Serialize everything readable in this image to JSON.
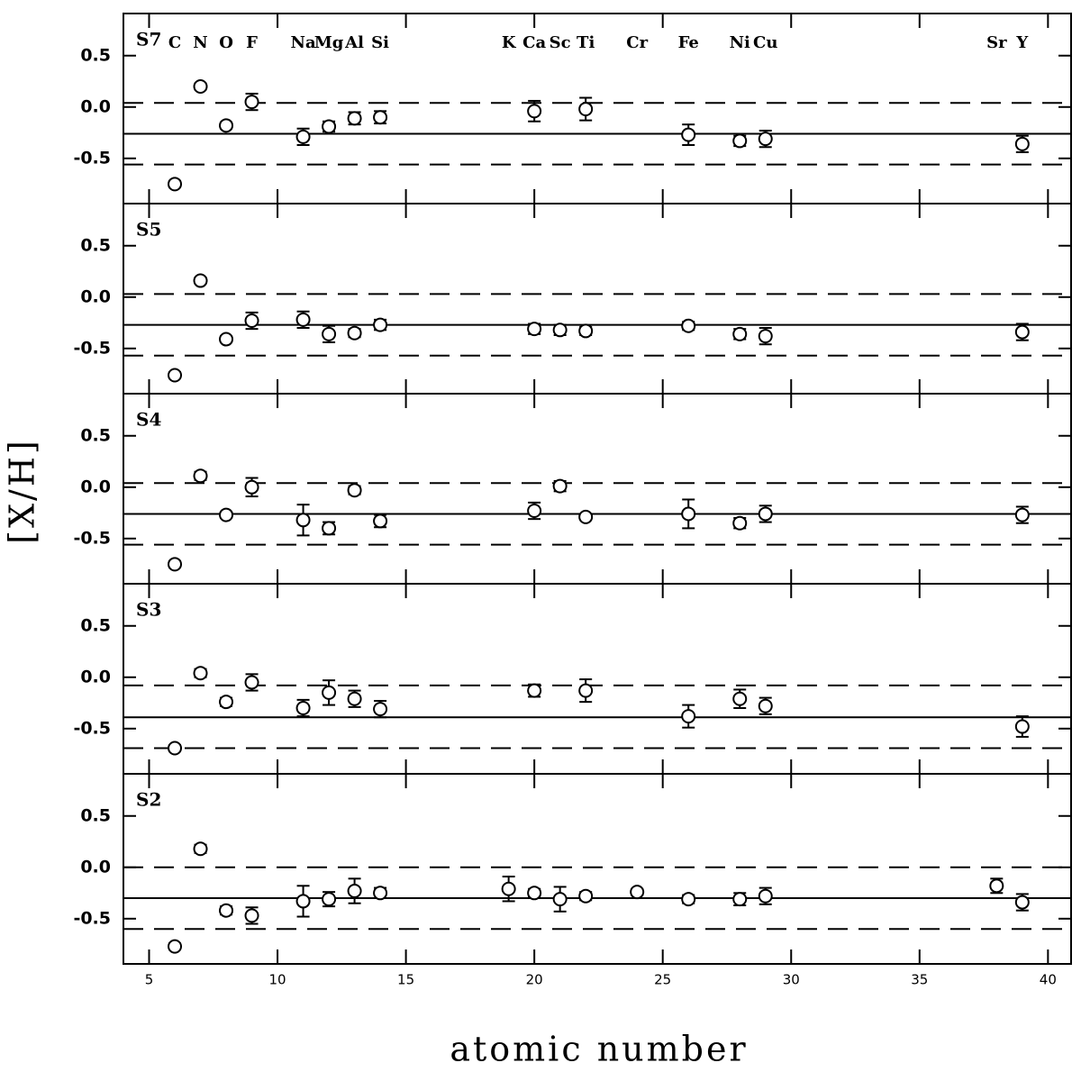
{
  "axis_labels": {
    "x": "atomic number",
    "y": "[X/H]"
  },
  "chart_data": [
    {
      "type": "scatter",
      "label": "S7",
      "annotations": [
        {
          "text": "C",
          "x": 6
        },
        {
          "text": "N",
          "x": 7
        },
        {
          "text": "O",
          "x": 8
        },
        {
          "text": "F",
          "x": 9
        },
        {
          "text": "Na",
          "x": 11
        },
        {
          "text": "Mg",
          "x": 12
        },
        {
          "text": "Al",
          "x": 13
        },
        {
          "text": "Si",
          "x": 14
        },
        {
          "text": "K",
          "x": 19
        },
        {
          "text": "Ca",
          "x": 20
        },
        {
          "text": "Sc",
          "x": 21
        },
        {
          "text": "Ti",
          "x": 22
        },
        {
          "text": "Cr",
          "x": 24
        },
        {
          "text": "Fe",
          "x": 26
        },
        {
          "text": "Ni",
          "x": 28
        },
        {
          "text": "Cu",
          "x": 29
        },
        {
          "text": "Sr",
          "x": 38
        },
        {
          "text": "Y",
          "x": 39
        }
      ],
      "x": [
        6,
        7,
        8,
        9,
        11,
        12,
        13,
        14,
        20,
        22,
        26,
        28,
        29,
        39
      ],
      "values": [
        -0.75,
        0.2,
        -0.18,
        0.05,
        -0.29,
        -0.19,
        -0.11,
        -0.1,
        -0.04,
        -0.02,
        -0.27,
        -0.33,
        -0.31,
        -0.36
      ],
      "errors": [
        0.03,
        0.03,
        0.03,
        0.08,
        0.08,
        0.05,
        0.06,
        0.06,
        0.1,
        0.11,
        0.1,
        0.05,
        0.08,
        0.08
      ],
      "mean": -0.26,
      "bounds": [
        0.04,
        -0.56
      ],
      "ylim": [
        -0.94,
        0.91
      ],
      "yticks": [
        {
          "value": 0.5,
          "label": "0.5"
        },
        {
          "value": 0,
          "label": "0.0"
        },
        {
          "value": -0.5,
          "label": "-0.5"
        }
      ]
    },
    {
      "type": "scatter",
      "label": "S5",
      "x": [
        6,
        7,
        8,
        9,
        11,
        12,
        13,
        14,
        20,
        21,
        22,
        26,
        28,
        29,
        39
      ],
      "values": [
        -0.76,
        0.16,
        -0.41,
        -0.23,
        -0.22,
        -0.36,
        -0.35,
        -0.27,
        -0.31,
        -0.32,
        -0.33,
        -0.28,
        -0.36,
        -0.38,
        -0.34
      ],
      "errors": [
        0.03,
        0.03,
        0.03,
        0.08,
        0.08,
        0.08,
        0.04,
        0.05,
        0.05,
        0.05,
        0.04,
        0.04,
        0.05,
        0.08,
        0.08
      ],
      "mean": -0.27,
      "bounds": [
        0.03,
        -0.57
      ],
      "ylim": [
        -0.94,
        0.91
      ],
      "yticks": [
        {
          "value": 0.5,
          "label": "0.5"
        },
        {
          "value": 0,
          "label": "0.0"
        },
        {
          "value": -0.5,
          "label": "-0.5"
        }
      ]
    },
    {
      "type": "scatter",
      "label": "S4",
      "x": [
        6,
        7,
        8,
        9,
        11,
        12,
        13,
        14,
        20,
        21,
        22,
        26,
        28,
        29,
        39
      ],
      "values": [
        -0.75,
        0.11,
        -0.27,
        0.0,
        -0.32,
        -0.4,
        -0.03,
        -0.33,
        -0.23,
        0.01,
        -0.29,
        -0.26,
        -0.35,
        -0.26,
        -0.27
      ],
      "errors": [
        0.03,
        0.04,
        0.03,
        0.09,
        0.15,
        0.06,
        0.04,
        0.06,
        0.08,
        0.05,
        0.02,
        0.14,
        0.05,
        0.08,
        0.08
      ],
      "mean": -0.26,
      "bounds": [
        0.04,
        -0.56
      ],
      "ylim": [
        -0.94,
        0.91
      ],
      "yticks": [
        {
          "value": 0.5,
          "label": "0.5"
        },
        {
          "value": 0,
          "label": "0.0"
        },
        {
          "value": -0.5,
          "label": "-0.5"
        }
      ]
    },
    {
      "type": "scatter",
      "label": "S3",
      "x": [
        6,
        7,
        8,
        9,
        11,
        12,
        13,
        14,
        20,
        22,
        26,
        28,
        29,
        39
      ],
      "values": [
        -0.69,
        0.04,
        -0.24,
        -0.05,
        -0.3,
        -0.15,
        -0.21,
        -0.31,
        -0.13,
        -0.13,
        -0.38,
        -0.21,
        -0.28,
        -0.48
      ],
      "errors": [
        0.03,
        0.04,
        0.04,
        0.08,
        0.08,
        0.12,
        0.08,
        0.08,
        0.06,
        0.11,
        0.11,
        0.09,
        0.08,
        0.1
      ],
      "mean": -0.39,
      "bounds": [
        -0.08,
        -0.69
      ],
      "ylim": [
        -0.94,
        0.91
      ],
      "yticks": [
        {
          "value": 0.5,
          "label": "0.5"
        },
        {
          "value": 0,
          "label": "0.0"
        },
        {
          "value": -0.5,
          "label": "-0.5"
        }
      ]
    },
    {
      "type": "scatter",
      "label": "S2",
      "x": [
        6,
        7,
        8,
        9,
        11,
        12,
        13,
        14,
        19,
        20,
        21,
        22,
        24,
        26,
        28,
        29,
        38,
        39
      ],
      "values": [
        -0.77,
        0.18,
        -0.42,
        -0.47,
        -0.33,
        -0.31,
        -0.23,
        -0.25,
        -0.21,
        -0.25,
        -0.31,
        -0.28,
        -0.24,
        -0.31,
        -0.31,
        -0.28,
        -0.18,
        -0.34
      ],
      "errors": [
        0.03,
        0.04,
        0.04,
        0.08,
        0.15,
        0.07,
        0.12,
        0.05,
        0.12,
        0.04,
        0.12,
        0.04,
        0.03,
        0.04,
        0.06,
        0.08,
        0.07,
        0.08
      ],
      "mean": -0.3,
      "bounds": [
        0.0,
        -0.6
      ],
      "ylim": [
        -0.94,
        0.91
      ],
      "yticks": [
        {
          "value": 0.5,
          "label": "0.5"
        },
        {
          "value": 0,
          "label": "0.0"
        },
        {
          "value": -0.5,
          "label": "-0.5"
        }
      ],
      "xlim": [
        4,
        40.9
      ],
      "xticks": [
        5,
        10,
        15,
        20,
        25,
        30,
        35,
        40
      ]
    }
  ]
}
